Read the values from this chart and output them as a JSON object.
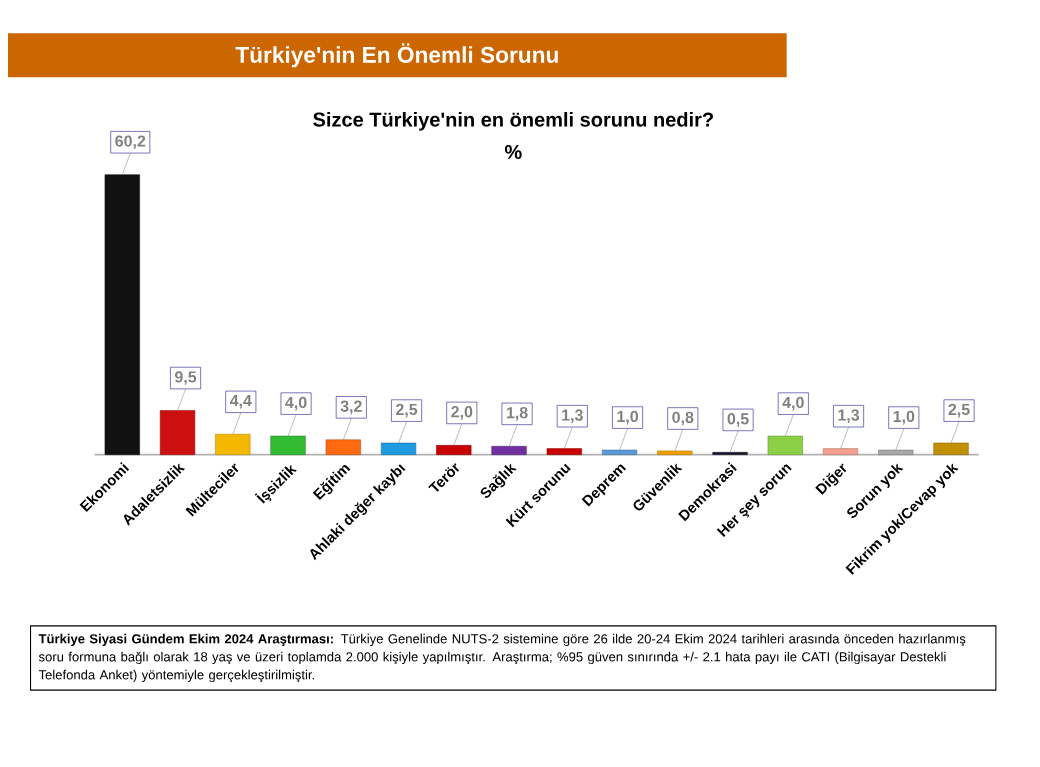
{
  "chart_data": {
    "type": "bar",
    "title": "Türkiye'nin En Önemli Sorunu",
    "subtitle": "Sizce Türkiye'nin en önemli sorunu nedir?",
    "categories": [
      "Ekonomi",
      "Adaletsizlik",
      "Mülteciler",
      "İşsizlik",
      "Eğitim",
      "Ahlaki değer kaybı",
      "Terör",
      "Sağlık",
      "Kürt sorunu",
      "Deprem",
      "Güvenlik",
      "Demokrasi",
      "Her şey sorun",
      "Diğer",
      "Sorun yok",
      "Fikrim yok/Cevap yok"
    ],
    "values": [
      60.2,
      9.5,
      4.4,
      4.0,
      3.2,
      2.5,
      2.0,
      1.8,
      1.3,
      1.0,
      0.8,
      0.5,
      4.0,
      1.3,
      1.0,
      2.5
    ],
    "value_labels": [
      "60,2",
      "9,5",
      "4,4",
      "4,0",
      "3,2",
      "2,5",
      "2,0",
      "1,8",
      "1,3",
      "1,0",
      "0,8",
      "0,5",
      "4,0",
      "1,3",
      "1,0",
      "2,5"
    ],
    "colors": [
      "#111111",
      "#cc1010",
      "#f5b800",
      "#33bb33",
      "#ff6a10",
      "#1e9be0",
      "#c80000",
      "#7030a0",
      "#c80000",
      "#5b9bd5",
      "#f0a000",
      "#1a1a2e",
      "#8cd048",
      "#f4a090",
      "#a8a8a8",
      "#c09000"
    ],
    "annotations": [
      "%",
      "**Türkiye Siyasi Gündem Ekim 2024 Araştırması:** Türkiye Genelinde  NUTS-2 sistemine göre 26 ilde 20-24 Ekim 2024 tarihleri arasında önceden hazırlanmış soru formuna bağlı olarak 18 yaş ve üzeri toplamda 2.000 kişiyle yapılmıştır. Araştırma; %95 güven sınırında +/- 2.1 hata payı ile CATI (Bilgisayar Destekli Telefonda Anket) yöntemiyle gerçekleştirilmiştir."
    ]
  }
}
